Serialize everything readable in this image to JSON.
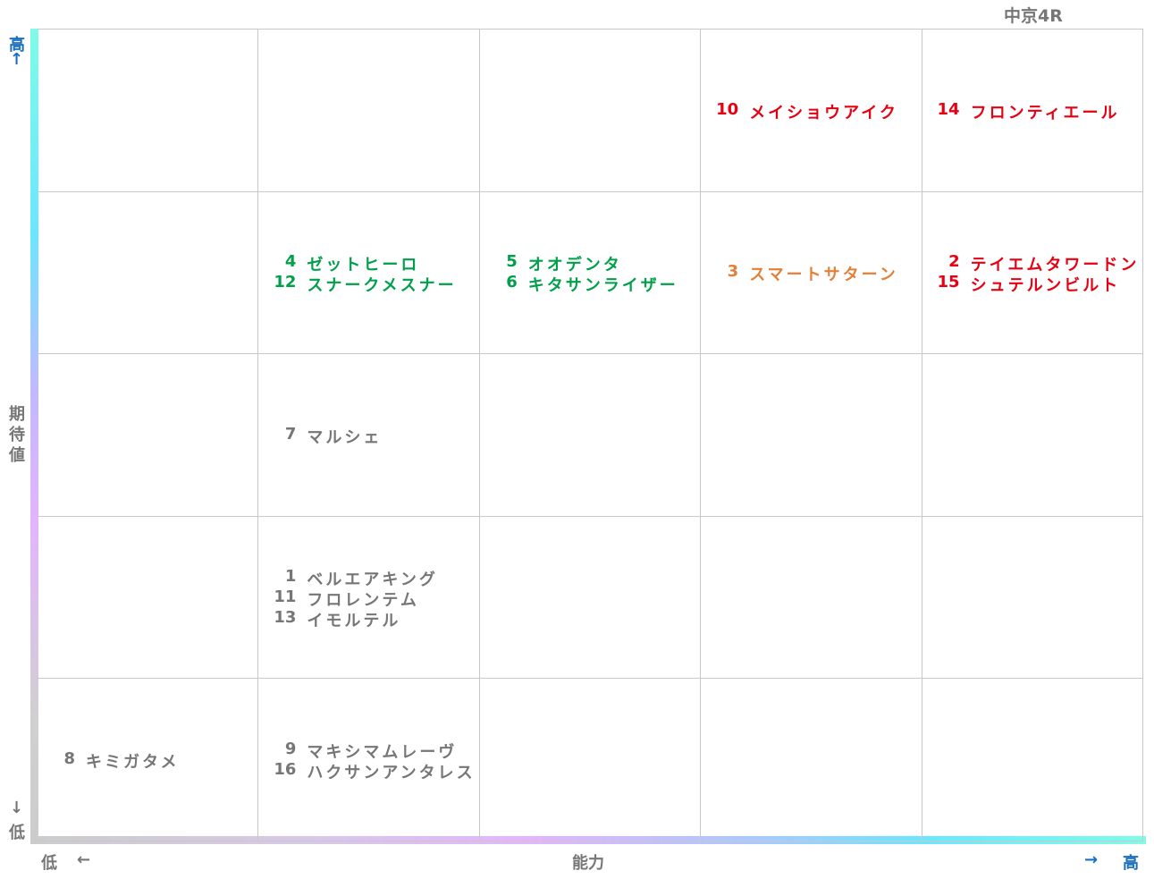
{
  "title": "中京4R",
  "y_axis": {
    "label": "期待値",
    "high": "高",
    "high_arrow": "↑",
    "low_arrow": "↓",
    "low": "低"
  },
  "x_axis": {
    "label": "能力",
    "low": "低",
    "low_arrow": "←",
    "high_arrow": "→",
    "high": "高"
  },
  "grid": {
    "rows": [
      [
        null,
        null,
        null,
        {
          "color": "#e60012",
          "horses": [
            {
              "number": 10,
              "name": "メイショウアイク"
            }
          ]
        },
        {
          "color": "#e60012",
          "horses": [
            {
              "number": 14,
              "name": "フロンティエール"
            }
          ]
        }
      ],
      [
        null,
        {
          "color": "#00a04a",
          "horses": [
            {
              "number": 4,
              "name": "ゼットヒーロ"
            },
            {
              "number": 12,
              "name": "スナークメスナー"
            }
          ]
        },
        {
          "color": "#00a04a",
          "horses": [
            {
              "number": 5,
              "name": "オオデンタ"
            },
            {
              "number": 6,
              "name": "キタサンライザー"
            }
          ]
        },
        {
          "color": "#e2803a",
          "horses": [
            {
              "number": 3,
              "name": "スマートサターン"
            }
          ]
        },
        {
          "color": "#e60012",
          "horses": [
            {
              "number": 2,
              "name": "テイエムタワードン"
            },
            {
              "number": 15,
              "name": "シュテルンビルト"
            }
          ]
        }
      ],
      [
        null,
        {
          "color": "#767676",
          "horses": [
            {
              "number": 7,
              "name": "マルシェ"
            }
          ]
        },
        null,
        null,
        null
      ],
      [
        null,
        {
          "color": "#767676",
          "horses": [
            {
              "number": 1,
              "name": "ベルエアキング"
            },
            {
              "number": 11,
              "name": "フロレンテム"
            },
            {
              "number": 13,
              "name": "イモルテル"
            }
          ]
        },
        null,
        null,
        null
      ],
      [
        {
          "color": "#767676",
          "horses": [
            {
              "number": 8,
              "name": "キミガタメ"
            }
          ]
        },
        {
          "color": "#767676",
          "horses": [
            {
              "number": 9,
              "name": "マキシマムレーヴ"
            },
            {
              "number": 16,
              "name": "ハクサンアンタレス"
            }
          ]
        },
        null,
        null,
        null
      ]
    ]
  }
}
